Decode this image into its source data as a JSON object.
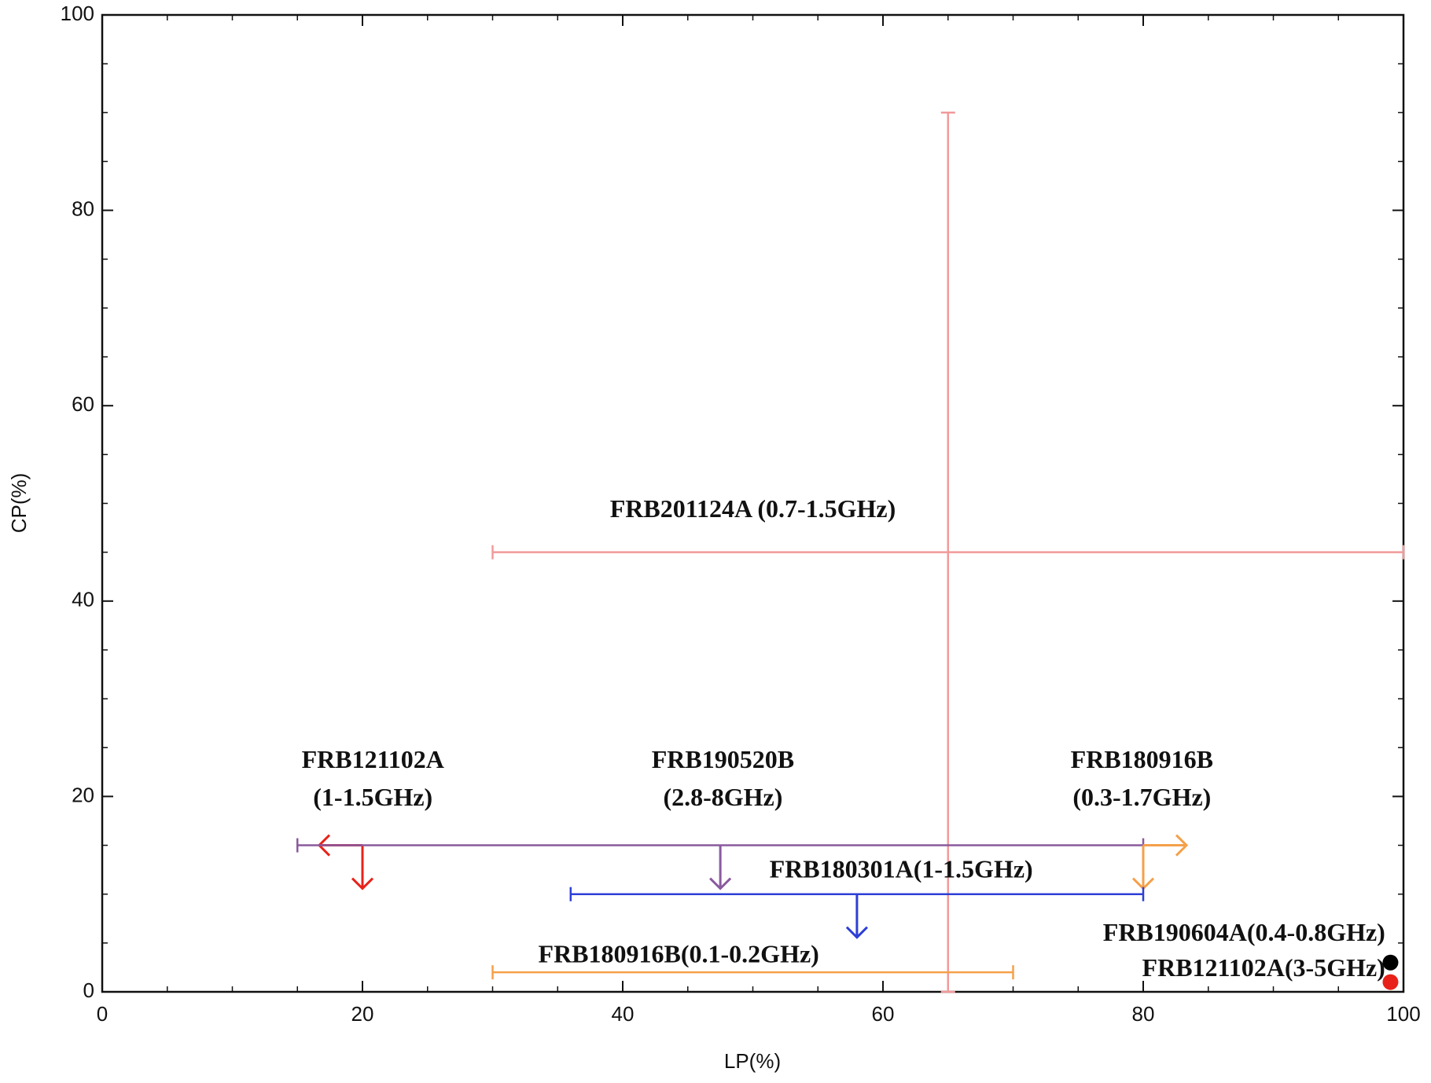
{
  "chart_data": {
    "type": "scatter",
    "x_label": "LP(%)",
    "y_label": "CP(%)",
    "xlim": [
      0,
      100
    ],
    "ylim": [
      0,
      100
    ],
    "xticks": [
      0,
      20,
      40,
      60,
      80,
      100
    ],
    "yticks": [
      0,
      20,
      40,
      60,
      80,
      100
    ],
    "series": [
      {
        "label_lines": [
          "FRB201124A (0.7-1.5GHz)"
        ],
        "color": "#f29a9a",
        "x": 65,
        "y": 45,
        "x_range": [
          30,
          100
        ],
        "y_range": [
          0,
          90
        ]
      },
      {
        "label_lines": [
          "FRB121102A",
          "(1-1.5GHz)"
        ],
        "color": "#e8221a",
        "x": 20,
        "y": 15,
        "x_limit": "upper",
        "y_limit": "upper"
      },
      {
        "label_lines": [
          "FRB190520B",
          "(2.8-8GHz)"
        ],
        "color": "#8a5a9e",
        "x": 47.5,
        "y": 15,
        "x_range": [
          15,
          80
        ],
        "y_limit": "upper"
      },
      {
        "label_lines": [
          "FRB180916B",
          "(0.3-1.7GHz)"
        ],
        "color": "#f5a04a",
        "x": 80,
        "y": 15,
        "x_limit": "lower",
        "y_limit": "upper"
      },
      {
        "label_lines": [
          "FRB180301A(1-1.5GHz)"
        ],
        "color": "#2d3fd6",
        "x": 58,
        "y": 10,
        "x_range": [
          36,
          80
        ],
        "y_limit": "upper"
      },
      {
        "label_lines": [
          "FRB180916B(0.1-0.2GHz)"
        ],
        "color": "#f5a04a",
        "y": 2,
        "x_range": [
          30,
          70
        ]
      },
      {
        "label_lines": [
          "FRB190604A(0.4-0.8GHz)"
        ],
        "color": "#000000",
        "x": 99,
        "y": 3
      },
      {
        "label_lines": [
          "FRB121102A(3-5GHz)"
        ],
        "color": "#e8221a",
        "x": 99,
        "y": 1
      }
    ]
  }
}
